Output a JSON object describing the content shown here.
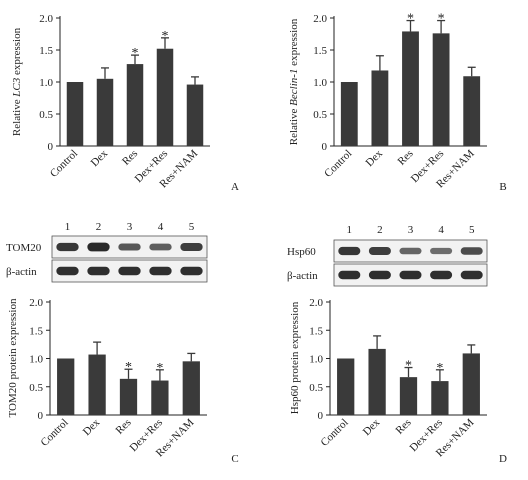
{
  "chart_data": [
    {
      "panel": "A",
      "type": "bar",
      "ylabel": "Relative LC3 expression",
      "ylabel_italic": "LC3",
      "categories": [
        "Control",
        "Dex",
        "Res",
        "Dex+Res",
        "Res+NAM"
      ],
      "values": [
        1.0,
        1.05,
        1.28,
        1.52,
        0.96
      ],
      "errors": [
        0,
        0.17,
        0.14,
        0.17,
        0.12
      ],
      "significant": [
        false,
        false,
        true,
        true,
        false
      ],
      "ylim": [
        0,
        2.0
      ],
      "yticks": [
        "0",
        "0.5",
        "1.0",
        "1.5",
        "2.0"
      ]
    },
    {
      "panel": "B",
      "type": "bar",
      "ylabel": "Relative Beclin-1 expression",
      "ylabel_italic": "Beclin-1",
      "categories": [
        "Control",
        "Dex",
        "Res",
        "Dex+Res",
        "Res+NAM"
      ],
      "values": [
        1.0,
        1.18,
        1.79,
        1.76,
        1.09
      ],
      "errors": [
        0,
        0.23,
        0.17,
        0.2,
        0.14
      ],
      "significant": [
        false,
        false,
        true,
        true,
        false
      ],
      "ylim": [
        0,
        2.0
      ],
      "yticks": [
        "0",
        "0.5",
        "1.0",
        "1.5",
        "2.0"
      ]
    },
    {
      "panel": "C",
      "type": "bar",
      "ylabel": "TOM20 protein expression",
      "categories": [
        "Control",
        "Dex",
        "Res",
        "Dex+Res",
        "Res+NAM"
      ],
      "values": [
        1.0,
        1.07,
        0.64,
        0.61,
        0.95
      ],
      "errors": [
        0,
        0.22,
        0.17,
        0.19,
        0.14
      ],
      "significant": [
        false,
        false,
        true,
        true,
        false
      ],
      "ylim": [
        0,
        2.0
      ],
      "yticks": [
        "0",
        "0.5",
        "1.0",
        "1.5",
        "2.0"
      ],
      "blot": {
        "lanes": [
          "1",
          "2",
          "3",
          "4",
          "5"
        ],
        "rows": [
          {
            "label": "TOM20",
            "intensity": [
              0.85,
              0.95,
              0.6,
              0.55,
              0.8
            ]
          },
          {
            "label": "β-actin",
            "intensity": [
              0.9,
              0.9,
              0.9,
              0.9,
              0.9
            ]
          }
        ]
      }
    },
    {
      "panel": "D",
      "type": "bar",
      "ylabel": "Hsp60 protein expression",
      "categories": [
        "Control",
        "Dex",
        "Res",
        "Dex+Res",
        "Res+NAM"
      ],
      "values": [
        1.0,
        1.17,
        0.67,
        0.6,
        1.09
      ],
      "errors": [
        0,
        0.23,
        0.17,
        0.2,
        0.15
      ],
      "significant": [
        false,
        false,
        true,
        true,
        false
      ],
      "ylim": [
        0,
        2.0
      ],
      "yticks": [
        "0",
        "0.5",
        "1.0",
        "1.5",
        "2.0"
      ],
      "blot": {
        "lanes": [
          "1",
          "2",
          "3",
          "4",
          "5"
        ],
        "rows": [
          {
            "label": "Hsp60",
            "intensity": [
              0.85,
              0.8,
              0.5,
              0.45,
              0.7
            ]
          },
          {
            "label": "β-actin",
            "intensity": [
              0.9,
              0.9,
              0.9,
              0.9,
              0.9
            ]
          }
        ]
      }
    }
  ],
  "significance_marker": "*"
}
